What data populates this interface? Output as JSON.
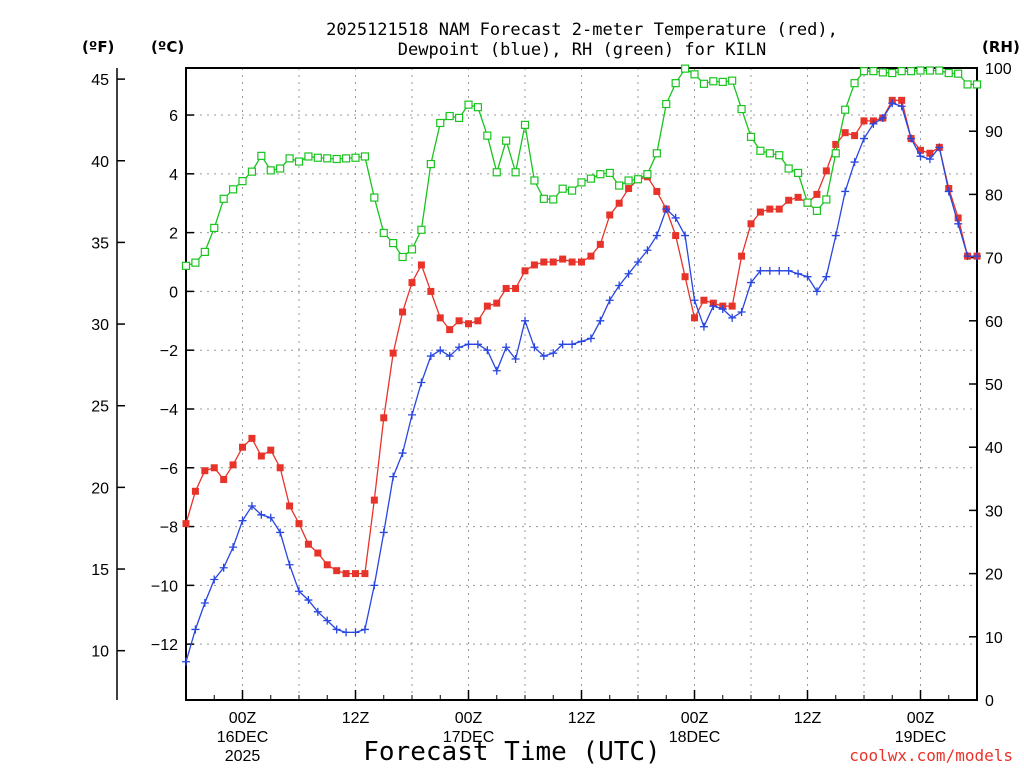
{
  "chart_data": {
    "type": "line",
    "title_line1": "2025121518 NAM Forecast 2-meter Temperature (red),",
    "title_line2": "Dewpoint (blue), RH (green) for KILN",
    "xlabel": "Forecast Time (UTC)",
    "credit": "coolwx.com/models",
    "left_outer_axis": {
      "unit": "(ºF)",
      "ticks": [
        10,
        15,
        20,
        25,
        30,
        35,
        40,
        45
      ]
    },
    "left_inner_axis": {
      "unit": "(ºC)",
      "ylim": [
        -13.9,
        7.6
      ],
      "ticks": [
        -12,
        -10,
        -8,
        -6,
        -4,
        -2,
        0,
        2,
        4,
        6
      ]
    },
    "right_axis": {
      "unit": "(RH)",
      "ylim": [
        0,
        100
      ],
      "ticks": [
        0,
        10,
        20,
        30,
        40,
        50,
        60,
        70,
        80,
        90,
        100
      ]
    },
    "x_axis": {
      "xlim": [
        -6,
        78
      ],
      "ticks": [
        {
          "hour": 0,
          "label": "00Z",
          "date": "16DEC",
          "year": "2025"
        },
        {
          "hour": 12,
          "label": "12Z",
          "date": "",
          "year": ""
        },
        {
          "hour": 24,
          "label": "00Z",
          "date": "17DEC",
          "year": ""
        },
        {
          "hour": 36,
          "label": "12Z",
          "date": "",
          "year": ""
        },
        {
          "hour": 48,
          "label": "00Z",
          "date": "18DEC",
          "year": ""
        },
        {
          "hour": 60,
          "label": "12Z",
          "date": "",
          "year": ""
        },
        {
          "hour": 72,
          "label": "00Z",
          "date": "19DEC",
          "year": ""
        }
      ]
    },
    "series": [
      {
        "name": "Temperature",
        "color": "#e8332a",
        "marker": "filled-square",
        "axis": "celsius",
        "x": [
          -6,
          -5,
          -4,
          -3,
          -2,
          -1,
          0,
          1,
          2,
          3,
          4,
          5,
          6,
          7,
          8,
          9,
          10,
          11,
          12,
          13,
          14,
          15,
          16,
          17,
          18,
          19,
          20,
          21,
          22,
          23,
          24,
          25,
          26,
          27,
          28,
          29,
          30,
          31,
          32,
          33,
          34,
          35,
          36,
          37,
          38,
          39,
          40,
          41,
          42,
          43,
          44,
          45,
          46,
          47,
          48,
          49,
          50,
          51,
          52,
          53,
          54,
          55,
          56,
          57,
          58,
          59,
          60,
          61,
          62,
          63,
          64,
          65,
          66,
          67,
          68,
          69,
          70,
          71,
          72,
          73,
          74,
          75,
          76,
          77,
          78
        ],
        "values": [
          -7.9,
          -6.8,
          -6.1,
          -6.0,
          -6.4,
          -5.9,
          -5.3,
          -5.0,
          -5.6,
          -5.4,
          -6.0,
          -7.3,
          -7.9,
          -8.6,
          -8.9,
          -9.3,
          -9.5,
          -9.6,
          -9.6,
          -9.6,
          -7.1,
          -4.3,
          -2.1,
          -0.7,
          0.3,
          0.9,
          0.0,
          -0.9,
          -1.3,
          -1.0,
          -1.1,
          -1.0,
          -0.5,
          -0.4,
          0.1,
          0.1,
          0.7,
          0.9,
          1.0,
          1.0,
          1.1,
          1.0,
          1.0,
          1.2,
          1.6,
          2.6,
          3.0,
          3.5,
          3.8,
          3.9,
          3.4,
          2.8,
          1.9,
          0.5,
          -0.9,
          -0.3,
          -0.4,
          -0.5,
          -0.5,
          1.2,
          2.3,
          2.7,
          2.8,
          2.8,
          3.1,
          3.2,
          3.0,
          3.3,
          4.1,
          5.0,
          5.4,
          5.3,
          5.8,
          5.8,
          5.9,
          6.5,
          6.5,
          5.2,
          4.8,
          4.7,
          4.9,
          3.5,
          2.5,
          1.2,
          1.2
        ]
      },
      {
        "name": "Dewpoint",
        "color": "#2846e0",
        "marker": "plus",
        "axis": "celsius",
        "x": [
          -6,
          -5,
          -4,
          -3,
          -2,
          -1,
          0,
          1,
          2,
          3,
          4,
          5,
          6,
          7,
          8,
          9,
          10,
          11,
          12,
          13,
          14,
          15,
          16,
          17,
          18,
          19,
          20,
          21,
          22,
          23,
          24,
          25,
          26,
          27,
          28,
          29,
          30,
          31,
          32,
          33,
          34,
          35,
          36,
          37,
          38,
          39,
          40,
          41,
          42,
          43,
          44,
          45,
          46,
          47,
          48,
          49,
          50,
          51,
          52,
          53,
          54,
          55,
          56,
          57,
          58,
          59,
          60,
          61,
          62,
          63,
          64,
          65,
          66,
          67,
          68,
          69,
          70,
          71,
          72,
          73,
          74,
          75,
          76,
          77,
          78
        ],
        "values": [
          -12.6,
          -11.5,
          -10.6,
          -9.8,
          -9.4,
          -8.7,
          -7.8,
          -7.3,
          -7.6,
          -7.7,
          -8.2,
          -9.3,
          -10.2,
          -10.5,
          -10.9,
          -11.2,
          -11.5,
          -11.6,
          -11.6,
          -11.5,
          -10.0,
          -8.2,
          -6.3,
          -5.5,
          -4.2,
          -3.1,
          -2.2,
          -2.0,
          -2.2,
          -1.9,
          -1.8,
          -1.8,
          -2.0,
          -2.7,
          -1.9,
          -2.3,
          -1.0,
          -1.9,
          -2.2,
          -2.1,
          -1.8,
          -1.8,
          -1.7,
          -1.6,
          -1.0,
          -0.3,
          0.2,
          0.6,
          1.0,
          1.4,
          1.9,
          2.8,
          2.5,
          1.9,
          -0.3,
          -1.2,
          -0.5,
          -0.6,
          -0.9,
          -0.7,
          0.3,
          0.7,
          0.7,
          0.7,
          0.7,
          0.6,
          0.5,
          0.0,
          0.5,
          1.9,
          3.4,
          4.4,
          5.2,
          5.7,
          5.9,
          6.4,
          6.3,
          5.2,
          4.6,
          4.5,
          4.9,
          3.4,
          2.3,
          1.2,
          1.2
        ]
      },
      {
        "name": "RH",
        "color": "#19c41e",
        "marker": "open-square",
        "axis": "rh",
        "x": [
          -6,
          -5,
          -4,
          -3,
          -2,
          -1,
          0,
          1,
          2,
          3,
          4,
          5,
          6,
          7,
          8,
          9,
          10,
          11,
          12,
          13,
          14,
          15,
          16,
          17,
          18,
          19,
          20,
          21,
          22,
          23,
          24,
          25,
          26,
          27,
          28,
          29,
          30,
          31,
          32,
          33,
          34,
          35,
          36,
          37,
          38,
          39,
          40,
          41,
          42,
          43,
          44,
          45,
          46,
          47,
          48,
          49,
          50,
          51,
          52,
          53,
          54,
          55,
          56,
          57,
          58,
          59,
          60,
          61,
          62,
          63,
          64,
          65,
          66,
          67,
          68,
          69,
          70,
          71,
          72,
          73,
          74,
          75,
          76,
          77,
          78
        ],
        "values": [
          68.7,
          69.2,
          70.9,
          74.7,
          79.3,
          80.8,
          82.1,
          83.6,
          86.1,
          83.8,
          84.1,
          85.7,
          85.2,
          86.0,
          85.8,
          85.7,
          85.6,
          85.7,
          85.8,
          86.0,
          79.5,
          73.9,
          72.3,
          70.1,
          71.3,
          74.4,
          84.8,
          91.3,
          92.4,
          92.1,
          94.2,
          93.8,
          89.3,
          83.5,
          88.5,
          83.5,
          91.0,
          82.2,
          79.3,
          79.2,
          80.9,
          80.6,
          81.9,
          82.5,
          83.2,
          83.4,
          81.4,
          82.2,
          82.4,
          83.2,
          86.5,
          94.3,
          97.6,
          99.9,
          99.0,
          97.5,
          97.9,
          97.8,
          98.0,
          93.5,
          89.1,
          86.9,
          86.5,
          86.2,
          84.1,
          83.4,
          78.7,
          77.4,
          79.2,
          86.5,
          93.4,
          97.6,
          99.5,
          99.5,
          99.3,
          99.2,
          99.5,
          99.5,
          99.6,
          99.6,
          99.6,
          99.2,
          99.1,
          97.4,
          97.4
        ]
      }
    ]
  }
}
